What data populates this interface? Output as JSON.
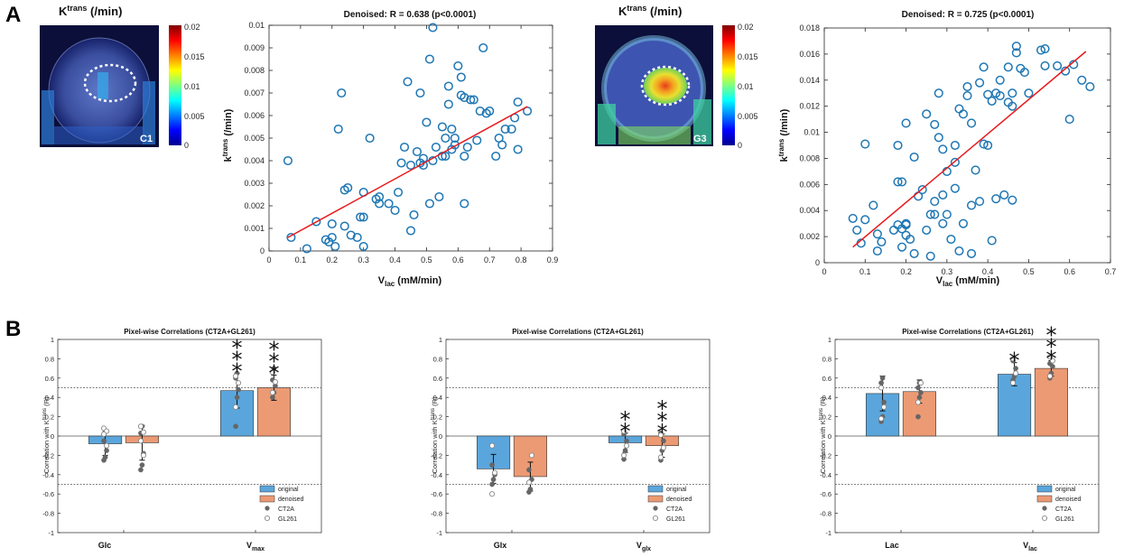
{
  "panels": {
    "a": "A",
    "b": "B"
  },
  "colors": {
    "marker": "#1f77b4",
    "fit": "#e8191c",
    "original": "#5aa6dc",
    "denoised": "#ec9a74",
    "dot_filled": "#666666",
    "dot_open": "#888888"
  },
  "maps": [
    {
      "title_base": "K",
      "title_sup": "trans",
      "title_unit": " (/min)",
      "label": "C1",
      "colorbar_ticks": [
        "0.02",
        "0.015",
        "0.01",
        "0.005",
        "0"
      ]
    },
    {
      "title_base": "K",
      "title_sup": "trans",
      "title_unit": " (/min)",
      "label": "G3",
      "colorbar_ticks": [
        "0.02",
        "0.015",
        "0.01",
        "0.005",
        "0"
      ]
    }
  ],
  "chart_data": [
    {
      "type": "scatter",
      "title": "Denoised: R = 0.638 (p<0.0001)",
      "xlabel_base": "V",
      "xlabel_sub": "lac",
      "xlabel_unit": " (mM/min)",
      "ylabel_base": "k",
      "ylabel_sup": "trans",
      "ylabel_unit": " (/min)",
      "xlim": [
        0,
        0.9
      ],
      "ylim": [
        0,
        0.01
      ],
      "xticks": [
        "0",
        "0.1",
        "0.2",
        "0.3",
        "0.4",
        "0.5",
        "0.6",
        "0.7",
        "0.8",
        "0.9"
      ],
      "yticks": [
        "0",
        "0.001",
        "0.002",
        "0.003",
        "0.004",
        "0.005",
        "0.006",
        "0.007",
        "0.008",
        "0.009",
        "0.01"
      ],
      "fit": {
        "x": [
          0.06,
          0.82
        ],
        "y": [
          0.0006,
          0.0064
        ]
      },
      "points": [
        [
          0.06,
          0.004
        ],
        [
          0.07,
          0.0006
        ],
        [
          0.12,
          0.0001
        ],
        [
          0.15,
          0.0013
        ],
        [
          0.18,
          0.0005
        ],
        [
          0.19,
          0.0004
        ],
        [
          0.2,
          0.0012
        ],
        [
          0.2,
          0.0006
        ],
        [
          0.21,
          0.0002
        ],
        [
          0.22,
          0.0054
        ],
        [
          0.23,
          0.007
        ],
        [
          0.24,
          0.0011
        ],
        [
          0.24,
          0.0027
        ],
        [
          0.25,
          0.0028
        ],
        [
          0.26,
          0.0007
        ],
        [
          0.28,
          0.0006
        ],
        [
          0.29,
          0.0015
        ],
        [
          0.3,
          0.0026
        ],
        [
          0.3,
          0.0015
        ],
        [
          0.3,
          0.0002
        ],
        [
          0.32,
          0.005
        ],
        [
          0.34,
          0.0023
        ],
        [
          0.35,
          0.0024
        ],
        [
          0.35,
          0.0021
        ],
        [
          0.38,
          0.0021
        ],
        [
          0.4,
          0.0018
        ],
        [
          0.41,
          0.0026
        ],
        [
          0.42,
          0.0039
        ],
        [
          0.43,
          0.0046
        ],
        [
          0.44,
          0.0075
        ],
        [
          0.45,
          0.0009
        ],
        [
          0.45,
          0.0038
        ],
        [
          0.46,
          0.0016
        ],
        [
          0.47,
          0.0044
        ],
        [
          0.48,
          0.007
        ],
        [
          0.48,
          0.0039
        ],
        [
          0.49,
          0.0041
        ],
        [
          0.49,
          0.0038
        ],
        [
          0.5,
          0.0057
        ],
        [
          0.51,
          0.0085
        ],
        [
          0.51,
          0.0021
        ],
        [
          0.52,
          0.0099
        ],
        [
          0.52,
          0.004
        ],
        [
          0.53,
          0.0046
        ],
        [
          0.54,
          0.0024
        ],
        [
          0.55,
          0.0055
        ],
        [
          0.55,
          0.0042
        ],
        [
          0.56,
          0.005
        ],
        [
          0.56,
          0.0042
        ],
        [
          0.57,
          0.0065
        ],
        [
          0.57,
          0.0073
        ],
        [
          0.58,
          0.0045
        ],
        [
          0.58,
          0.0054
        ],
        [
          0.59,
          0.0047
        ],
        [
          0.59,
          0.005
        ],
        [
          0.6,
          0.0082
        ],
        [
          0.61,
          0.0077
        ],
        [
          0.61,
          0.0069
        ],
        [
          0.62,
          0.0021
        ],
        [
          0.62,
          0.0042
        ],
        [
          0.62,
          0.0068
        ],
        [
          0.63,
          0.0046
        ],
        [
          0.64,
          0.0067
        ],
        [
          0.65,
          0.0067
        ],
        [
          0.66,
          0.0049
        ],
        [
          0.67,
          0.0062
        ],
        [
          0.68,
          0.009
        ],
        [
          0.69,
          0.0061
        ],
        [
          0.7,
          0.0062
        ],
        [
          0.72,
          0.0042
        ],
        [
          0.73,
          0.005
        ],
        [
          0.74,
          0.0047
        ],
        [
          0.75,
          0.0054
        ],
        [
          0.77,
          0.0054
        ],
        [
          0.78,
          0.0059
        ],
        [
          0.79,
          0.0066
        ],
        [
          0.79,
          0.0045
        ],
        [
          0.82,
          0.0062
        ]
      ]
    },
    {
      "type": "scatter",
      "title": "Denoised: R = 0.725 (p<0.0001)",
      "xlabel_base": "V",
      "xlabel_sub": "lac",
      "xlabel_unit": " (mM/min)",
      "ylabel_base": "k",
      "ylabel_sup": "trans",
      "ylabel_unit": " (/min)",
      "xlim": [
        0,
        0.7
      ],
      "ylim": [
        0,
        0.018
      ],
      "xticks": [
        "0",
        "0.1",
        "0.2",
        "0.3",
        "0.4",
        "0.5",
        "0.6",
        "0.7"
      ],
      "yticks": [
        "0",
        "0.002",
        "0.004",
        "0.006",
        "0.008",
        "0.01",
        "0.012",
        "0.014",
        "0.016",
        "0.018"
      ],
      "fit": {
        "x": [
          0.07,
          0.64
        ],
        "y": [
          0.0012,
          0.0162
        ]
      },
      "points": [
        [
          0.07,
          0.0034
        ],
        [
          0.08,
          0.0025
        ],
        [
          0.09,
          0.0015
        ],
        [
          0.1,
          0.0091
        ],
        [
          0.1,
          0.0033
        ],
        [
          0.12,
          0.0044
        ],
        [
          0.13,
          0.0022
        ],
        [
          0.13,
          0.0009
        ],
        [
          0.14,
          0.0016
        ],
        [
          0.17,
          0.0025
        ],
        [
          0.18,
          0.0029
        ],
        [
          0.18,
          0.009
        ],
        [
          0.18,
          0.0062
        ],
        [
          0.19,
          0.0062
        ],
        [
          0.19,
          0.0012
        ],
        [
          0.19,
          0.0026
        ],
        [
          0.2,
          0.0021
        ],
        [
          0.2,
          0.0029
        ],
        [
          0.2,
          0.0107
        ],
        [
          0.2,
          0.003
        ],
        [
          0.21,
          0.0018
        ],
        [
          0.22,
          0.0081
        ],
        [
          0.22,
          0.0007
        ],
        [
          0.23,
          0.0051
        ],
        [
          0.24,
          0.0056
        ],
        [
          0.25,
          0.0114
        ],
        [
          0.25,
          0.0025
        ],
        [
          0.26,
          0.0037
        ],
        [
          0.26,
          0.0005
        ],
        [
          0.27,
          0.0037
        ],
        [
          0.27,
          0.0047
        ],
        [
          0.27,
          0.0106
        ],
        [
          0.28,
          0.013
        ],
        [
          0.28,
          0.0096
        ],
        [
          0.29,
          0.0052
        ],
        [
          0.29,
          0.0087
        ],
        [
          0.29,
          0.003
        ],
        [
          0.3,
          0.007
        ],
        [
          0.3,
          0.0037
        ],
        [
          0.31,
          0.0018
        ],
        [
          0.32,
          0.009
        ],
        [
          0.32,
          0.0077
        ],
        [
          0.32,
          0.0057
        ],
        [
          0.33,
          0.0009
        ],
        [
          0.33,
          0.0118
        ],
        [
          0.34,
          0.0114
        ],
        [
          0.34,
          0.003
        ],
        [
          0.35,
          0.0135
        ],
        [
          0.35,
          0.0128
        ],
        [
          0.36,
          0.0007
        ],
        [
          0.36,
          0.0107
        ],
        [
          0.36,
          0.0044
        ],
        [
          0.37,
          0.0071
        ],
        [
          0.38,
          0.0138
        ],
        [
          0.38,
          0.0047
        ],
        [
          0.39,
          0.015
        ],
        [
          0.39,
          0.0091
        ],
        [
          0.4,
          0.0129
        ],
        [
          0.4,
          0.009
        ],
        [
          0.41,
          0.0124
        ],
        [
          0.41,
          0.0017
        ],
        [
          0.42,
          0.013
        ],
        [
          0.42,
          0.0049
        ],
        [
          0.43,
          0.014
        ],
        [
          0.43,
          0.0128
        ],
        [
          0.44,
          0.0052
        ],
        [
          0.45,
          0.0123
        ],
        [
          0.45,
          0.015
        ],
        [
          0.46,
          0.012
        ],
        [
          0.46,
          0.0048
        ],
        [
          0.46,
          0.013
        ],
        [
          0.47,
          0.0161
        ],
        [
          0.47,
          0.0166
        ],
        [
          0.48,
          0.0149
        ],
        [
          0.49,
          0.0146
        ],
        [
          0.5,
          0.013
        ],
        [
          0.53,
          0.0163
        ],
        [
          0.54,
          0.0164
        ],
        [
          0.54,
          0.0151
        ],
        [
          0.57,
          0.0151
        ],
        [
          0.59,
          0.0147
        ],
        [
          0.6,
          0.011
        ],
        [
          0.61,
          0.0152
        ],
        [
          0.63,
          0.014
        ],
        [
          0.65,
          0.0135
        ]
      ]
    },
    {
      "type": "bar",
      "title": "Pixel-wise Correlations (CT2A+GL261)",
      "ylabel_base": "Correlation with K",
      "ylabel_sup": "trans",
      "ylabel_unit": " (R)",
      "ylim": [
        -1,
        1
      ],
      "reference_lines": [
        0.5,
        -0.5
      ],
      "yticks": [
        "1",
        "0.8",
        "0.6",
        "0.4",
        "0.2",
        "0",
        "-0.2",
        "-0.4",
        "-0.6",
        "-0.8",
        "-1"
      ],
      "categories": [
        {
          "base": "Glc",
          "sub": ""
        },
        {
          "base": "V",
          "sub": "max"
        }
      ],
      "series": [
        {
          "name": "original",
          "values": [
            -0.08,
            0.47
          ],
          "errors": [
            0.12,
            0.18
          ]
        },
        {
          "name": "denoised",
          "values": [
            -0.07,
            0.5
          ],
          "errors": [
            0.18,
            0.13
          ]
        }
      ],
      "significance": [
        [
          "",
          ""
        ],
        [
          "***",
          "***"
        ]
      ],
      "points": {
        "CT2A": [
          [
            -0.25,
            -0.22,
            -0.15,
            -0.05,
            0.05
          ],
          [
            -0.35,
            -0.3,
            -0.18,
            0.03,
            0.1
          ]
        ],
        "GL261": [
          [
            0.08,
            0.05,
            0.02,
            -0.1
          ],
          [
            0.1,
            0.04,
            -0.05,
            -0.2
          ]
        ]
      },
      "points_max": {
        "CT2A": [
          [
            0.1,
            0.4,
            0.48,
            0.6,
            0.65
          ],
          [
            0.4,
            0.45,
            0.52,
            0.58,
            0.7
          ]
        ],
        "GL261": [
          [
            0.3,
            0.55,
            0.62
          ],
          [
            0.45,
            0.56,
            0.66
          ]
        ]
      },
      "legend": [
        "original",
        "denoised",
        "CT2A",
        "GL261"
      ]
    },
    {
      "type": "bar",
      "title": "Pixel-wise Correlations (CT2A+GL261)",
      "ylabel_base": "Correlation with K",
      "ylabel_sup": "trans",
      "ylabel_unit": " (R)",
      "ylim": [
        -1,
        1
      ],
      "reference_lines": [
        0.5,
        -0.5
      ],
      "yticks": [
        "1",
        "0.8",
        "0.6",
        "0.4",
        "0.2",
        "0",
        "-0.2",
        "-0.4",
        "-0.6",
        "-0.8",
        "-1"
      ],
      "categories": [
        {
          "base": "Glx",
          "sub": ""
        },
        {
          "base": "V",
          "sub": "glx"
        }
      ],
      "series": [
        {
          "name": "original",
          "values": [
            -0.34,
            -0.07
          ],
          "errors": [
            0.15,
            0.1
          ]
        },
        {
          "name": "denoised",
          "values": [
            -0.42,
            -0.1
          ],
          "errors": [
            0.15,
            0.12
          ]
        }
      ],
      "significance": [
        [
          "",
          ""
        ],
        [
          "**",
          "***"
        ]
      ],
      "points": {
        "CT2A": [
          [
            -0.5,
            -0.45,
            -0.4,
            -0.3
          ],
          [
            -0.58,
            -0.55,
            -0.45,
            -0.35
          ]
        ],
        "GL261": [
          [
            -0.6,
            -0.38,
            -0.1
          ],
          [
            -0.48,
            -0.2
          ]
        ]
      },
      "points_max": {
        "CT2A": [
          [
            -0.24,
            -0.15,
            -0.05,
            0.02
          ],
          [
            -0.25,
            -0.15,
            -0.05,
            0.03
          ]
        ],
        "GL261": [
          [
            -0.2,
            -0.1,
            0.05
          ],
          [
            -0.22,
            -0.12,
            0.01
          ]
        ]
      },
      "legend": [
        "original",
        "denoised",
        "CT2A",
        "GL261"
      ]
    },
    {
      "type": "bar",
      "title": "Pixel-wise Correlations (CT2A+GL261)",
      "ylabel_base": "Correlation with K",
      "ylabel_sup": "trans",
      "ylabel_unit": " (R)",
      "ylim": [
        -1,
        1
      ],
      "reference_lines": [
        0.5,
        -0.5
      ],
      "yticks": [
        "1",
        "0.8",
        "0.6",
        "0.4",
        "0.2",
        "0",
        "-0.2",
        "-0.4",
        "-0.6",
        "-0.8",
        "-1"
      ],
      "categories": [
        {
          "base": "Lac",
          "sub": ""
        },
        {
          "base": "V",
          "sub": "lac"
        }
      ],
      "series": [
        {
          "name": "original",
          "values": [
            0.44,
            0.64
          ],
          "errors": [
            0.18,
            0.12
          ]
        },
        {
          "name": "denoised",
          "values": [
            0.46,
            0.7
          ],
          "errors": [
            0.12,
            0.08
          ]
        }
      ],
      "significance": [
        [
          "",
          ""
        ],
        [
          "*",
          "***"
        ]
      ],
      "points": {
        "CT2A": [
          [
            0.15,
            0.2,
            0.35,
            0.55,
            0.6
          ],
          [
            0.2,
            0.4,
            0.45,
            0.5,
            0.55
          ]
        ],
        "GL261": [
          [
            0.18,
            0.3,
            0.5
          ],
          [
            0.35,
            0.55
          ]
        ]
      },
      "points_max": {
        "CT2A": [
          [
            0.58,
            0.62,
            0.7,
            0.78
          ],
          [
            0.6,
            0.65,
            0.72,
            0.75
          ]
        ],
        "GL261": [
          [
            0.55,
            0.65,
            0.8
          ],
          [
            0.62,
            0.78,
            0.82
          ]
        ]
      },
      "legend": [
        "original",
        "denoised",
        "CT2A",
        "GL261"
      ]
    }
  ]
}
